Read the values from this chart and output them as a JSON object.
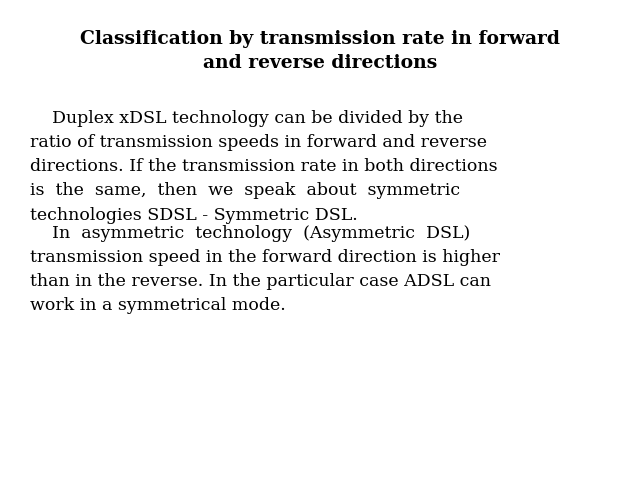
{
  "title_line1": "Classification by transmission rate in forward",
  "title_line2": "and reverse directions",
  "para1_lines": [
    "    Duplex xDSL technology can be divided by the",
    "ratio of transmission speeds in forward and reverse",
    "directions. If the transmission rate in both directions",
    "is  the  same,  then  we  speak  about  symmetric",
    "technologies SDSL - Symmetric DSL."
  ],
  "para2_lines": [
    "    In  asymmetric  technology  (Asymmetric  DSL)",
    "transmission speed in the forward direction is higher",
    "than in the reverse. In the particular case ADSL can",
    "work in a symmetrical mode."
  ],
  "background_color": "#ffffff",
  "title_color": "#000000",
  "body_color": "#000000",
  "title_fontsize": 13.5,
  "body_fontsize": 12.5,
  "fig_width": 6.4,
  "fig_height": 4.8
}
